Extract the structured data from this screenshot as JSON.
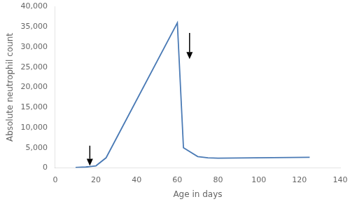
{
  "chart_data": {
    "type": "line",
    "x": [
      10,
      15,
      17,
      20,
      25,
      60,
      63,
      70,
      75,
      80,
      125
    ],
    "values": [
      100,
      200,
      300,
      500,
      2500,
      36000,
      5000,
      2800,
      2500,
      2400,
      2600
    ],
    "color": "#4a7ab5",
    "xlabel": "Age in days",
    "ylabel": "Absolute neutrophil count",
    "xlim": [
      0,
      140
    ],
    "ylim": [
      0,
      40000
    ],
    "xticks": [
      0,
      20,
      40,
      60,
      80,
      100,
      120,
      140
    ],
    "yticks": [
      0,
      {
        "value": 5000,
        "label": "5,000"
      },
      {
        "value": 10000,
        "label": "10,000"
      },
      {
        "value": 15000,
        "label": "15,000"
      },
      {
        "value": 20000,
        "label": "20,000"
      },
      {
        "value": 25000,
        "label": "25,000"
      },
      {
        "value": 30000,
        "label": "30,000"
      },
      {
        "value": 35000,
        "label": "35,000"
      },
      {
        "value": 40000,
        "label": "40,000"
      }
    ],
    "grid": false,
    "annotations": [
      {
        "type": "arrow",
        "x": 17,
        "y_start": 5500,
        "y_end": 500
      },
      {
        "type": "arrow",
        "x": 66,
        "y_start": 33500,
        "y_end": 27000
      }
    ]
  }
}
